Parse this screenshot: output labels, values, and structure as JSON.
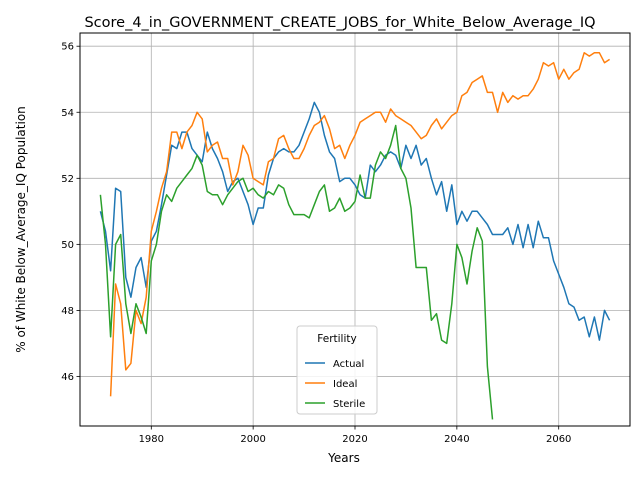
{
  "chart_data": {
    "type": "line",
    "title": "Score_4_in_GOVERNMENT_CREATE_JOBS_for_White_Below_Average_IQ",
    "xlabel": "Years",
    "ylabel": "% of White Below_Average_IQ Population",
    "xlim": [
      1966,
      2074
    ],
    "ylim": [
      44.5,
      56.4
    ],
    "xticks": [
      1980,
      2000,
      2020,
      2040,
      2060
    ],
    "yticks": [
      46,
      48,
      50,
      52,
      54,
      56
    ],
    "grid": true,
    "legend": {
      "title": "Fertility",
      "placement": "lower center"
    },
    "series": [
      {
        "name": "Actual",
        "color": "#1f77b4",
        "x": [
          1970,
          1971,
          1972,
          1973,
          1974,
          1975,
          1976,
          1977,
          1978,
          1979,
          1980,
          1981,
          1982,
          1983,
          1984,
          1985,
          1986,
          1987,
          1988,
          1989,
          1990,
          1991,
          1992,
          1993,
          1994,
          1995,
          1996,
          1997,
          1998,
          1999,
          2000,
          2001,
          2002,
          2003,
          2004,
          2005,
          2006,
          2007,
          2008,
          2009,
          2010,
          2011,
          2012,
          2013,
          2014,
          2015,
          2016,
          2017,
          2018,
          2019,
          2020,
          2021,
          2022,
          2023,
          2024,
          2025,
          2026,
          2027,
          2028,
          2029,
          2030,
          2031,
          2032,
          2033,
          2034,
          2035,
          2036,
          2037,
          2038,
          2039,
          2040,
          2041,
          2042,
          2043,
          2044,
          2045,
          2046,
          2047,
          2048,
          2049,
          2050,
          2051,
          2052,
          2053,
          2054,
          2055,
          2056,
          2057,
          2058,
          2059,
          2060,
          2061,
          2062,
          2063,
          2064,
          2065,
          2066,
          2067,
          2068,
          2069,
          2070
        ],
        "values": [
          51.0,
          50.4,
          49.2,
          51.7,
          51.6,
          49.0,
          48.4,
          49.3,
          49.6,
          48.7,
          50.1,
          50.4,
          51.2,
          52.1,
          53.0,
          52.9,
          53.4,
          53.4,
          52.9,
          52.7,
          52.5,
          53.4,
          52.9,
          52.6,
          52.2,
          51.6,
          51.9,
          52.0,
          51.6,
          51.2,
          50.6,
          51.1,
          51.1,
          52.1,
          52.6,
          52.8,
          52.9,
          52.8,
          52.8,
          53.0,
          53.4,
          53.8,
          54.3,
          54.0,
          53.3,
          52.8,
          52.6,
          51.9,
          52.0,
          52.0,
          51.8,
          51.5,
          51.4,
          52.4,
          52.2,
          52.4,
          52.7,
          52.8,
          52.7,
          52.3,
          53.0,
          52.6,
          53.0,
          52.4,
          52.6,
          52.0,
          51.5,
          51.9,
          51.0,
          51.8,
          50.6,
          51.0,
          50.7,
          51.0,
          51.0,
          50.8,
          50.6,
          50.3,
          50.3,
          50.3,
          50.5,
          50.0,
          50.6,
          49.9,
          50.6,
          49.9,
          50.7,
          50.2,
          50.2,
          49.5,
          49.1,
          48.7,
          48.2,
          48.1,
          47.7,
          47.8,
          47.2,
          47.8,
          47.1,
          48.0,
          47.7
        ]
      },
      {
        "name": "Ideal",
        "color": "#ff7f0e",
        "x": [
          1970,
          1971,
          1972,
          1973,
          1974,
          1975,
          1976,
          1977,
          1978,
          1979,
          1980,
          1981,
          1982,
          1983,
          1984,
          1985,
          1986,
          1987,
          1988,
          1989,
          1990,
          1991,
          1992,
          1993,
          1994,
          1995,
          1996,
          1997,
          1998,
          1999,
          2000,
          2001,
          2002,
          2003,
          2004,
          2005,
          2006,
          2007,
          2008,
          2009,
          2010,
          2011,
          2012,
          2013,
          2014,
          2015,
          2016,
          2017,
          2018,
          2019,
          2020,
          2021,
          2022,
          2023,
          2024,
          2025,
          2026,
          2027,
          2028,
          2029,
          2030,
          2031,
          2032,
          2033,
          2034,
          2035,
          2036,
          2037,
          2038,
          2039,
          2040,
          2041,
          2042,
          2043,
          2044,
          2045,
          2046,
          2047,
          2048,
          2049,
          2050,
          2051,
          2052,
          2053,
          2054,
          2055,
          2056,
          2057,
          2058,
          2059,
          2060,
          2061,
          2062,
          2063,
          2064,
          2065,
          2066,
          2067,
          2068,
          2069,
          2070
        ],
        "values": [
          null,
          null,
          45.4,
          48.8,
          48.2,
          46.2,
          46.4,
          48.0,
          47.6,
          48.4,
          50.4,
          51.0,
          51.7,
          52.2,
          53.4,
          53.4,
          52.9,
          53.4,
          53.6,
          54.0,
          53.8,
          52.8,
          53.0,
          53.1,
          52.6,
          52.6,
          51.8,
          52.2,
          53.0,
          52.7,
          52.0,
          51.9,
          51.8,
          52.5,
          52.6,
          53.2,
          53.3,
          52.9,
          52.6,
          52.6,
          52.9,
          53.3,
          53.6,
          53.7,
          53.9,
          53.5,
          52.9,
          53.0,
          52.6,
          53.0,
          53.3,
          53.7,
          53.8,
          53.9,
          54.0,
          54.0,
          53.7,
          54.1,
          53.9,
          53.8,
          53.7,
          53.6,
          53.4,
          53.2,
          53.3,
          53.6,
          53.8,
          53.5,
          53.7,
          53.9,
          54.0,
          54.5,
          54.6,
          54.9,
          55.0,
          55.1,
          54.6,
          54.6,
          54.0,
          54.6,
          54.3,
          54.5,
          54.4,
          54.5,
          54.5,
          54.7,
          55.0,
          55.5,
          55.4,
          55.5,
          55.0,
          55.3,
          55.0,
          55.2,
          55.3,
          55.8,
          55.7,
          55.8,
          55.8,
          55.5,
          55.6
        ]
      },
      {
        "name": "Sterile",
        "color": "#2ca02c",
        "x": [
          1970,
          1971,
          1972,
          1973,
          1974,
          1975,
          1976,
          1977,
          1978,
          1979,
          1980,
          1981,
          1982,
          1983,
          1984,
          1985,
          1986,
          1987,
          1988,
          1989,
          1990,
          1991,
          1992,
          1993,
          1994,
          1995,
          1996,
          1997,
          1998,
          1999,
          2000,
          2001,
          2002,
          2003,
          2004,
          2005,
          2006,
          2007,
          2008,
          2009,
          2010,
          2011,
          2012,
          2013,
          2014,
          2015,
          2016,
          2017,
          2018,
          2019,
          2020,
          2021,
          2022,
          2023,
          2024,
          2025,
          2026,
          2027,
          2028,
          2029,
          2030,
          2031,
          2032,
          2033,
          2034,
          2035,
          2036,
          2037,
          2038,
          2039,
          2040,
          2041,
          2042,
          2043,
          2044,
          2045,
          2046,
          2047
        ],
        "values": [
          51.5,
          50.0,
          47.2,
          50.0,
          50.3,
          48.2,
          47.3,
          48.2,
          47.8,
          47.3,
          49.5,
          50.0,
          51.0,
          51.5,
          51.3,
          51.7,
          51.9,
          52.1,
          52.3,
          52.7,
          52.4,
          51.6,
          51.5,
          51.5,
          51.2,
          51.5,
          51.7,
          51.9,
          52.0,
          51.6,
          51.7,
          51.5,
          51.4,
          51.6,
          51.5,
          51.8,
          51.7,
          51.2,
          50.9,
          50.9,
          50.9,
          50.8,
          51.2,
          51.6,
          51.8,
          51.0,
          51.1,
          51.4,
          51.0,
          51.1,
          51.3,
          52.1,
          51.4,
          51.4,
          52.4,
          52.8,
          52.6,
          53.0,
          53.6,
          52.3,
          52.0,
          51.1,
          49.3,
          49.3,
          49.3,
          47.7,
          47.9,
          47.1,
          47.0,
          48.2,
          50.0,
          49.6,
          48.8,
          49.8,
          50.5,
          50.1,
          46.3,
          44.7
        ]
      }
    ]
  }
}
